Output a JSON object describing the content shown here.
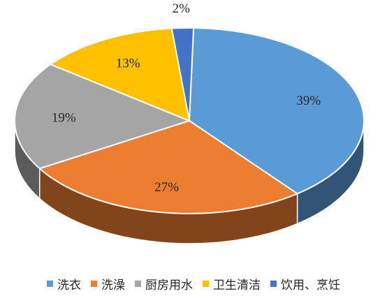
{
  "chart_data": {
    "type": "pie",
    "title": "",
    "legend_position": "bottom",
    "slices": [
      {
        "label": "洗衣",
        "value": 39,
        "value_label": "39%",
        "color": "#5B9BD5"
      },
      {
        "label": "洗澡",
        "value": 27,
        "value_label": "27%",
        "color": "#ED7D31"
      },
      {
        "label": "厨房用水",
        "value": 19,
        "value_label": "19%",
        "color": "#A5A5A5"
      },
      {
        "label": "卫生清洁",
        "value": 13,
        "value_label": "13%",
        "color": "#FFC000"
      },
      {
        "label": "饮用、烹饪",
        "value": 2,
        "value_label": "2%",
        "color": "#4472C4"
      }
    ]
  }
}
